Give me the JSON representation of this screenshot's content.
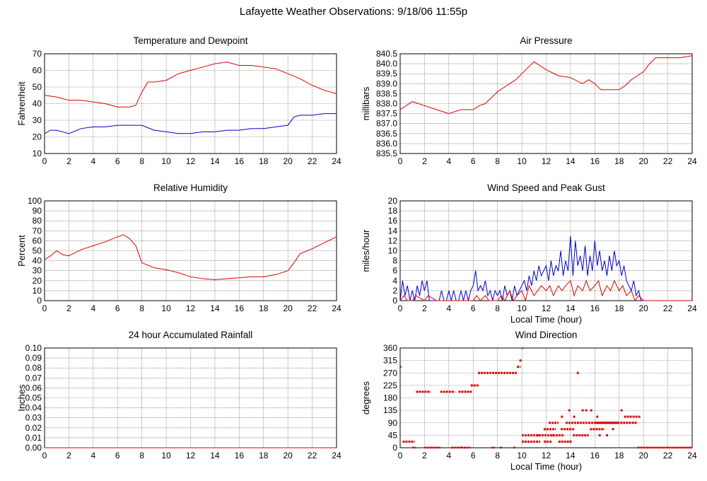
{
  "page": {
    "title": "Lafayette Weather Observations: 9/18/06 11:55p"
  },
  "colors": {
    "red": "#dd0000",
    "blue": "#0000cc",
    "grid": "#555555"
  },
  "chart_data": [
    {
      "id": "temp",
      "type": "line",
      "title": "Temperature and Dewpoint",
      "ylabel": "Fahrenheit",
      "xlabel": "",
      "xlim": [
        0,
        24
      ],
      "ylim": [
        10,
        70
      ],
      "xticks": [
        0,
        2,
        4,
        6,
        8,
        10,
        12,
        14,
        16,
        18,
        20,
        22,
        24
      ],
      "yticks": [
        10,
        20,
        30,
        40,
        50,
        60,
        70
      ],
      "grid": true,
      "series": [
        {
          "color": "red",
          "x": [
            0,
            1,
            2,
            3,
            4,
            5,
            6,
            7,
            7.5,
            8,
            8.5,
            9,
            10,
            11,
            12,
            13,
            14,
            15,
            16,
            17,
            18,
            19,
            20,
            21,
            22,
            23,
            24
          ],
          "y": [
            45,
            44,
            42,
            42,
            41,
            40,
            38,
            38,
            39,
            47,
            53,
            53,
            54,
            58,
            60,
            62,
            64,
            65,
            63,
            63,
            62,
            61,
            58,
            55,
            51,
            48,
            46
          ]
        },
        {
          "color": "blue",
          "x": [
            0,
            0.5,
            1,
            2,
            3,
            4,
            5,
            6,
            7,
            8,
            9,
            10,
            11,
            12,
            13,
            14,
            15,
            16,
            17,
            18,
            19,
            20,
            20.5,
            21,
            22,
            23,
            24
          ],
          "y": [
            22,
            24,
            24,
            22,
            25,
            26,
            26,
            27,
            27,
            27,
            24,
            23,
            22,
            22,
            23,
            23,
            24,
            24,
            25,
            25,
            26,
            27,
            32,
            33,
            33,
            34,
            34
          ]
        }
      ]
    },
    {
      "id": "pressure",
      "type": "line",
      "title": "Air Pressure",
      "ylabel": "millibars",
      "xlabel": "",
      "xlim": [
        0,
        24
      ],
      "ylim": [
        835.5,
        840.5
      ],
      "xticks": [
        0,
        2,
        4,
        6,
        8,
        10,
        12,
        14,
        16,
        18,
        20,
        22,
        24
      ],
      "yticks": [
        835.5,
        836.0,
        836.5,
        837.0,
        837.5,
        838.0,
        838.5,
        839.0,
        839.5,
        840.0,
        840.5
      ],
      "grid": true,
      "series": [
        {
          "color": "red",
          "x": [
            0,
            0.5,
            1,
            1.5,
            2,
            3,
            4,
            5,
            6,
            6.5,
            7,
            7.5,
            8,
            8.5,
            9,
            9.5,
            10,
            10.5,
            11,
            11.5,
            12,
            13,
            14,
            15,
            15.5,
            16,
            16.5,
            17,
            18,
            18.5,
            19,
            19.5,
            20,
            20.5,
            21,
            22,
            23,
            24
          ],
          "y": [
            837.7,
            837.9,
            838.1,
            838.0,
            837.9,
            837.7,
            837.5,
            837.7,
            837.7,
            837.9,
            838.0,
            838.3,
            838.6,
            838.8,
            839.0,
            839.2,
            839.5,
            839.8,
            840.1,
            839.9,
            839.7,
            839.4,
            839.3,
            839.0,
            839.2,
            839.0,
            838.7,
            838.7,
            838.7,
            838.9,
            839.2,
            839.4,
            839.6,
            840.0,
            840.3,
            840.3,
            840.3,
            840.4
          ]
        }
      ]
    },
    {
      "id": "humidity",
      "type": "line",
      "title": "Relative Humidity",
      "ylabel": "Percent",
      "xlabel": "",
      "xlim": [
        0,
        24
      ],
      "ylim": [
        0,
        100
      ],
      "xticks": [
        0,
        2,
        4,
        6,
        8,
        10,
        12,
        14,
        16,
        18,
        20,
        22,
        24
      ],
      "yticks": [
        0,
        10,
        20,
        30,
        40,
        50,
        60,
        70,
        80,
        90,
        100
      ],
      "grid": true,
      "series": [
        {
          "color": "red",
          "x": [
            0,
            0.5,
            1,
            1.5,
            2,
            3,
            4,
            5,
            6,
            6.5,
            7,
            7.5,
            8,
            9,
            10,
            11,
            12,
            13,
            14,
            15,
            16,
            17,
            18,
            19,
            20,
            20.5,
            21,
            22,
            23,
            24
          ],
          "y": [
            41,
            45,
            50,
            46,
            45,
            51,
            55,
            59,
            64,
            66,
            62,
            55,
            38,
            33,
            31,
            28,
            24,
            22,
            21,
            22,
            23,
            24,
            24,
            26,
            30,
            38,
            47,
            52,
            58,
            64
          ]
        }
      ]
    },
    {
      "id": "wind",
      "type": "line",
      "title": "Wind Speed and Peak Gust",
      "ylabel": "miles/hour",
      "xlabel": "Local Time (hour)",
      "xlim": [
        0,
        24
      ],
      "ylim": [
        0,
        20
      ],
      "xticks": [
        0,
        2,
        4,
        6,
        8,
        10,
        12,
        14,
        16,
        18,
        20,
        22,
        24
      ],
      "yticks": [
        0,
        2,
        4,
        6,
        8,
        10,
        12,
        14,
        16,
        18,
        20
      ],
      "grid": true,
      "series": [
        {
          "color": "blue",
          "x": [
            0,
            0.2,
            0.4,
            0.6,
            0.8,
            1,
            1.2,
            1.4,
            1.6,
            1.8,
            2,
            2.2,
            2.4,
            2.6,
            2.8,
            3,
            3.2,
            3.4,
            3.6,
            3.8,
            4,
            4.2,
            4.4,
            4.6,
            4.8,
            5,
            5.2,
            5.4,
            5.6,
            5.8,
            6,
            6.2,
            6.4,
            6.6,
            6.8,
            7,
            7.2,
            7.4,
            7.6,
            7.8,
            8,
            8.2,
            8.4,
            8.6,
            8.8,
            9,
            9.2,
            9.4,
            9.6,
            9.8,
            10,
            10.2,
            10.4,
            10.6,
            10.8,
            11,
            11.2,
            11.4,
            11.6,
            11.8,
            12,
            12.2,
            12.4,
            12.6,
            12.8,
            13,
            13.2,
            13.4,
            13.6,
            13.8,
            14,
            14.2,
            14.4,
            14.6,
            14.8,
            15,
            15.2,
            15.4,
            15.6,
            15.8,
            16,
            16.2,
            16.4,
            16.6,
            16.8,
            17,
            17.2,
            17.4,
            17.6,
            17.8,
            18,
            18.2,
            18.4,
            18.6,
            18.8,
            19,
            19.2,
            19.4,
            19.6,
            19.8,
            20,
            21,
            22,
            23,
            24
          ],
          "y": [
            0,
            4,
            1,
            3,
            0,
            2,
            0,
            3,
            1,
            4,
            2,
            4,
            0,
            0,
            0,
            0,
            0,
            2,
            0,
            0,
            2,
            0,
            2,
            0,
            0,
            2,
            0,
            2,
            0,
            2,
            3,
            6,
            2,
            3,
            2,
            4,
            1,
            2,
            0,
            2,
            1,
            2,
            0,
            3,
            1,
            2,
            0,
            3,
            1,
            2,
            3,
            4,
            2,
            5,
            3,
            6,
            4,
            7,
            5,
            6,
            7,
            4,
            8,
            5,
            7,
            6,
            10,
            5,
            8,
            6,
            13,
            5,
            12,
            7,
            9,
            6,
            11,
            5,
            9,
            6,
            12,
            7,
            10,
            6,
            8,
            5,
            9,
            6,
            10,
            7,
            8,
            5,
            7,
            4,
            3,
            2,
            4,
            1,
            2,
            0,
            0,
            0,
            0,
            0,
            0
          ]
        },
        {
          "color": "red",
          "x": [
            0,
            0.3,
            0.6,
            1,
            1.3,
            2,
            2.3,
            3,
            4,
            5,
            6,
            6.3,
            6.6,
            7,
            7.3,
            8,
            8.3,
            8.6,
            9,
            9.3,
            9.6,
            10,
            10.3,
            10.6,
            11,
            11.3,
            11.6,
            12,
            12.3,
            12.6,
            13,
            13.3,
            13.6,
            14,
            14.3,
            14.6,
            15,
            15.3,
            15.6,
            16,
            16.3,
            16.6,
            17,
            17.3,
            17.6,
            18,
            18.3,
            18.6,
            19,
            19.3,
            19.6,
            20,
            21,
            22,
            23,
            24
          ],
          "y": [
            0,
            1,
            0,
            0,
            1,
            0,
            1,
            0,
            0,
            0,
            0,
            1,
            0,
            1,
            0,
            0,
            1,
            0,
            2,
            0,
            1,
            2,
            0,
            3,
            1,
            2,
            3,
            2,
            3,
            1,
            3,
            2,
            3,
            4,
            1,
            3,
            2,
            4,
            2,
            3,
            4,
            1,
            3,
            2,
            4,
            2,
            3,
            1,
            2,
            0,
            1,
            0,
            0,
            0,
            0,
            0
          ]
        }
      ]
    },
    {
      "id": "rain",
      "type": "line",
      "title": "24 hour Accumulated Rainfall",
      "ylabel": "Inches",
      "xlabel": "",
      "xlim": [
        0,
        24
      ],
      "ylim": [
        0,
        0.1
      ],
      "xticks": [
        0,
        2,
        4,
        6,
        8,
        10,
        12,
        14,
        16,
        18,
        20,
        22,
        24
      ],
      "yticks": [
        "0.00",
        "0.01",
        "0.02",
        "0.03",
        "0.04",
        "0.05",
        "0.06",
        "0.07",
        "0.08",
        "0.09",
        "0.10"
      ],
      "grid": true,
      "series": [
        {
          "color": "red",
          "x": [
            0,
            24
          ],
          "y": [
            0,
            0
          ]
        }
      ]
    },
    {
      "id": "direction",
      "type": "scatter",
      "title": "Wind Direction",
      "ylabel": "degrees",
      "xlabel": "Local Time (hour)",
      "xlim": [
        0,
        24
      ],
      "ylim": [
        0,
        360
      ],
      "xticks": [
        0,
        2,
        4,
        6,
        8,
        10,
        12,
        14,
        16,
        18,
        20,
        22,
        24
      ],
      "yticks": [
        0,
        45,
        90,
        135,
        180,
        225,
        270,
        315,
        360
      ],
      "grid": true,
      "series": [
        {
          "color": "red",
          "segments": [
            {
              "x0": 0.0,
              "x1": 0.1,
              "y": 292
            },
            {
              "x0": 0.2,
              "x1": 1.2,
              "y": 22
            },
            {
              "x0": 1.0,
              "x1": 1.3,
              "y": 0
            },
            {
              "x0": 1.3,
              "x1": 2.5,
              "y": 202
            },
            {
              "x0": 2.0,
              "x1": 3.3,
              "y": 0
            },
            {
              "x0": 3.3,
              "x1": 4.5,
              "y": 202
            },
            {
              "x0": 4.2,
              "x1": 5.0,
              "y": 0
            },
            {
              "x0": 4.8,
              "x1": 5.9,
              "y": 202
            },
            {
              "x0": 5.0,
              "x1": 5.8,
              "y": 0
            },
            {
              "x0": 5.8,
              "x1": 6.5,
              "y": 225
            },
            {
              "x0": 6.4,
              "x1": 9.6,
              "y": 270
            },
            {
              "x0": 7.5,
              "x1": 7.8,
              "y": 0
            },
            {
              "x0": 8.2,
              "x1": 8.4,
              "y": 0
            },
            {
              "x0": 9.3,
              "x1": 9.5,
              "y": 0
            },
            {
              "x0": 9.6,
              "x1": 9.9,
              "y": 292
            },
            {
              "x0": 9.8,
              "x1": 10.0,
              "y": 315
            },
            {
              "x0": 10.0,
              "x1": 10.1,
              "y": 360
            },
            {
              "x0": 10.0,
              "x1": 13.5,
              "y": 45
            },
            {
              "x0": 10.0,
              "x1": 11.5,
              "y": 22
            },
            {
              "x0": 11.8,
              "x1": 12.5,
              "y": 22
            },
            {
              "x0": 11.8,
              "x1": 12.8,
              "y": 67
            },
            {
              "x0": 12.2,
              "x1": 13.0,
              "y": 90
            },
            {
              "x0": 13.0,
              "x1": 14.0,
              "y": 22
            },
            {
              "x0": 13.2,
              "x1": 14.3,
              "y": 67
            },
            {
              "x0": 13.6,
              "x1": 18.0,
              "y": 90
            },
            {
              "x0": 14.2,
              "x1": 15.5,
              "y": 45
            },
            {
              "x0": 15.6,
              "x1": 16.8,
              "y": 67
            },
            {
              "x0": 16.0,
              "x1": 19.5,
              "y": 90
            },
            {
              "x0": 18.4,
              "x1": 19.8,
              "y": 112
            },
            {
              "x0": 19.5,
              "x1": 24.0,
              "y": 0
            }
          ],
          "points": [
            {
              "x": 13.9,
              "y": 135
            },
            {
              "x": 14.3,
              "y": 112
            },
            {
              "x": 14.6,
              "y": 270
            },
            {
              "x": 15.0,
              "y": 135
            },
            {
              "x": 15.3,
              "y": 135
            },
            {
              "x": 15.7,
              "y": 135
            },
            {
              "x": 16.2,
              "y": 112
            },
            {
              "x": 16.4,
              "y": 45
            },
            {
              "x": 17.0,
              "y": 45
            },
            {
              "x": 17.5,
              "y": 67
            },
            {
              "x": 18.2,
              "y": 135
            },
            {
              "x": 13.3,
              "y": 112
            },
            {
              "x": 12.6,
              "y": 45
            },
            {
              "x": 11.3,
              "y": 45
            },
            {
              "x": 14.0,
              "y": 22
            }
          ]
        }
      ]
    }
  ]
}
